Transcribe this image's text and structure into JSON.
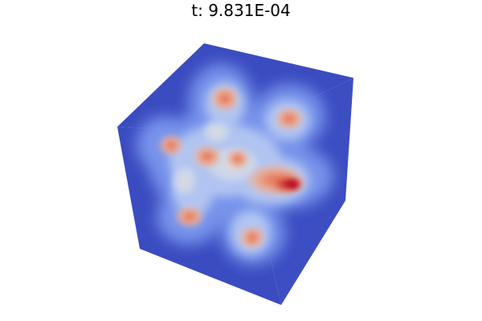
{
  "figure": {
    "title": "t: 9.831E-04"
  },
  "colormap": {
    "name": "coolwarm",
    "low": "#3b4cc0",
    "mid": "#dddddd",
    "high": "#b40426"
  },
  "render": {
    "object": "cube",
    "faces_visible": [
      "top",
      "left",
      "front"
    ]
  }
}
